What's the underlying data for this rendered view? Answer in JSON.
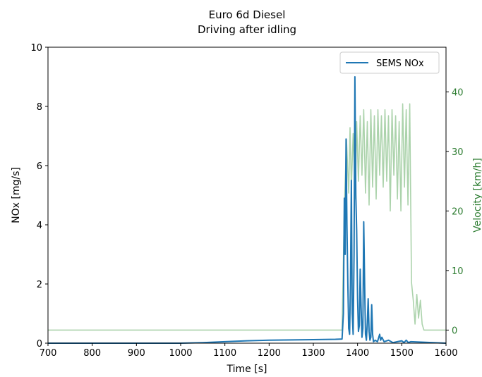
{
  "chart_data": {
    "type": "line",
    "title": "Euro 6d Diesel",
    "subtitle": "Driving after idling",
    "xlabel": "Time [s]",
    "ylabel": "NOx [mg/s]",
    "y2label": "Velocity [km/h]",
    "xlim": [
      700,
      1600
    ],
    "ylim": [
      0,
      10
    ],
    "y2lim": [
      -2.2,
      47.5
    ],
    "x_ticks": [
      "700",
      "800",
      "900",
      "1000",
      "1100",
      "1200",
      "1300",
      "1400",
      "1500",
      "1600"
    ],
    "y_ticks": [
      "0",
      "2",
      "4",
      "6",
      "8",
      "10"
    ],
    "y2_ticks": [
      "0",
      "10",
      "20",
      "30",
      "40"
    ],
    "grid": false,
    "legend": {
      "position": "top-right",
      "entries": [
        "SEMS NOx"
      ]
    },
    "colors": {
      "nox": "#1f77b4",
      "velocity": "#90c490",
      "y2_axis": "#2e7d32"
    },
    "series": [
      {
        "name": "SEMS NOx",
        "axis": "left",
        "x": [
          700,
          1000,
          1050,
          1100,
          1150,
          1200,
          1250,
          1300,
          1350,
          1365,
          1368,
          1370,
          1372,
          1374,
          1376,
          1378,
          1380,
          1382,
          1384,
          1386,
          1388,
          1390,
          1392,
          1394,
          1396,
          1398,
          1400,
          1402,
          1404,
          1406,
          1408,
          1410,
          1412,
          1414,
          1416,
          1418,
          1420,
          1422,
          1424,
          1426,
          1428,
          1430,
          1432,
          1434,
          1436,
          1440,
          1445,
          1450,
          1452,
          1455,
          1460,
          1470,
          1480,
          1490,
          1500,
          1505,
          1510,
          1515,
          1520,
          1600
        ],
        "y": [
          0,
          0,
          0.02,
          0.05,
          0.08,
          0.1,
          0.11,
          0.12,
          0.13,
          0.14,
          1.0,
          4.9,
          3.0,
          6.9,
          4.0,
          2.0,
          0.5,
          0.3,
          2.0,
          5.5,
          1.0,
          0.3,
          3.0,
          9.0,
          5.0,
          3.8,
          1.5,
          0.4,
          0.6,
          2.5,
          1.2,
          0.2,
          0.5,
          4.1,
          2.0,
          0.3,
          0.1,
          0.7,
          1.5,
          0.4,
          0.1,
          0.2,
          1.3,
          0.3,
          0.05,
          0.1,
          0.05,
          0.3,
          0.1,
          0.2,
          0.05,
          0.1,
          0.02,
          0.05,
          0.08,
          0.02,
          0.1,
          0.02,
          0.05,
          0
        ]
      },
      {
        "axis": "right",
        "x": [
          700,
          1365,
          1370,
          1375,
          1380,
          1383,
          1386,
          1390,
          1395,
          1398,
          1402,
          1406,
          1410,
          1414,
          1418,
          1422,
          1426,
          1430,
          1434,
          1438,
          1442,
          1446,
          1450,
          1454,
          1458,
          1462,
          1466,
          1470,
          1474,
          1478,
          1482,
          1486,
          1490,
          1494,
          1498,
          1502,
          1506,
          1510,
          1514,
          1518,
          1522,
          1526,
          1530,
          1534,
          1538,
          1542,
          1546,
          1550,
          1555,
          1600
        ],
        "y": [
          0,
          0,
          20,
          32,
          23,
          34,
          24,
          33,
          22,
          35,
          25,
          36,
          26,
          37,
          23,
          35,
          21,
          37,
          24,
          36,
          22,
          37,
          26,
          36,
          24,
          37,
          25,
          36,
          20,
          37,
          26,
          36,
          22,
          35,
          20,
          38,
          24,
          37,
          21,
          38,
          8,
          5,
          1,
          6,
          2,
          5,
          1,
          0,
          0,
          0
        ]
      }
    ]
  }
}
